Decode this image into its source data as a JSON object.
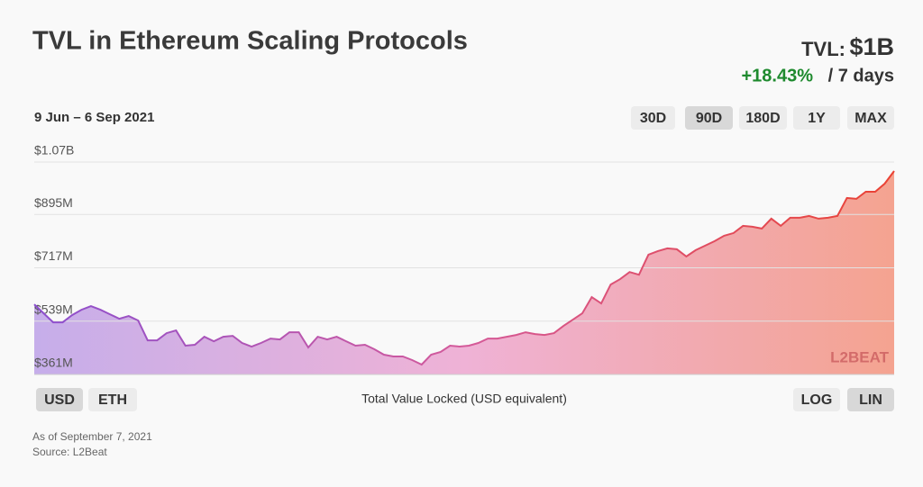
{
  "header": {
    "title": "TVL in Ethereum Scaling Protocols",
    "tvl_label": "TVL:",
    "tvl_value": "$1B",
    "change": "+18.43%",
    "change_period": "/ 7 days",
    "date_range": "9 Jun – 6 Sep 2021"
  },
  "range_buttons": [
    {
      "label": "30D",
      "selected": false
    },
    {
      "label": "90D",
      "selected": true
    },
    {
      "label": "180D",
      "selected": false
    },
    {
      "label": "1Y",
      "selected": false
    },
    {
      "label": "MAX",
      "selected": false
    }
  ],
  "currency_buttons": [
    {
      "label": "USD",
      "selected": true
    },
    {
      "label": "ETH",
      "selected": false
    }
  ],
  "scale_buttons": [
    {
      "label": "LOG",
      "selected": false
    },
    {
      "label": "LIN",
      "selected": true
    }
  ],
  "chart_data": {
    "type": "area",
    "caption": "Total Value Locked (USD equivalent)",
    "watermark": "L2BEAT",
    "ylim": [
      361000000,
      1070000000
    ],
    "yticks": [
      {
        "value": 1070000000,
        "label": "$1.07B"
      },
      {
        "value": 895000000,
        "label": "$895M"
      },
      {
        "value": 717000000,
        "label": "$717M"
      },
      {
        "value": 539000000,
        "label": "$539M"
      },
      {
        "value": 361000000,
        "label": "$361M"
      }
    ],
    "grid": true,
    "colors": [
      "#8c4fcf",
      "#d45a9a",
      "#ea4233"
    ],
    "fill_colors": [
      "#c6aeea",
      "#efb2d6",
      "#f4a390"
    ],
    "values": [
      595000000,
      565000000,
      535000000,
      535000000,
      559000000,
      577000000,
      589000000,
      577000000,
      562000000,
      547000000,
      556000000,
      541000000,
      475000000,
      475000000,
      499000000,
      508000000,
      457000000,
      460000000,
      487000000,
      472000000,
      487000000,
      490000000,
      466000000,
      454000000,
      466000000,
      481000000,
      478000000,
      502000000,
      502000000,
      451000000,
      487000000,
      478000000,
      487000000,
      472000000,
      457000000,
      460000000,
      445000000,
      427000000,
      421000000,
      421000000,
      409000000,
      394000000,
      427000000,
      436000000,
      457000000,
      454000000,
      457000000,
      466000000,
      481000000,
      481000000,
      487000000,
      493000000,
      502000000,
      496000000,
      493000000,
      499000000,
      523000000,
      544000000,
      565000000,
      619000000,
      598000000,
      661000000,
      679000000,
      703000000,
      694000000,
      761000000,
      773000000,
      782000000,
      779000000,
      755000000,
      776000000,
      791000000,
      806000000,
      824000000,
      833000000,
      857000000,
      854000000,
      848000000,
      881000000,
      857000000,
      884000000,
      884000000,
      890000000,
      881000000,
      884000000,
      890000000,
      950000000,
      947000000,
      971000000,
      971000000,
      998000000,
      1040000000
    ]
  },
  "footer": {
    "as_of": "As of September 7, 2021",
    "source": "Source: L2Beat"
  }
}
